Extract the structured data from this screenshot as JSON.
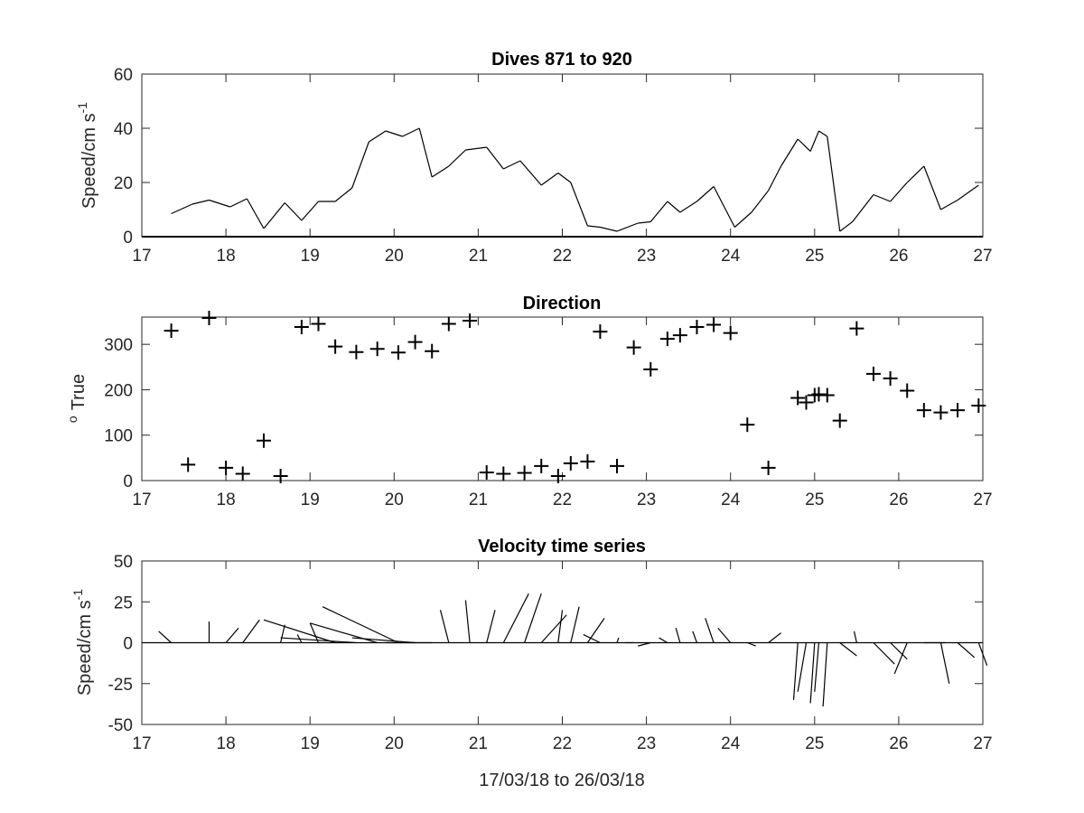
{
  "chart_data": [
    {
      "type": "line",
      "title": "Dives 871 to 920",
      "ylabel_main": "Speed/cm s",
      "ylabel_exp": "-1",
      "xlim": [
        17,
        27
      ],
      "ylim": [
        0,
        60
      ],
      "xticks": [
        17,
        18,
        19,
        20,
        21,
        22,
        23,
        24,
        25,
        26,
        27
      ],
      "yticks": [
        0,
        20,
        40,
        60
      ],
      "x": [
        17.35,
        17.6,
        17.8,
        18.05,
        18.25,
        18.45,
        18.7,
        18.9,
        19.1,
        19.3,
        19.5,
        19.7,
        19.9,
        20.1,
        20.3,
        20.45,
        20.65,
        20.85,
        21.1,
        21.3,
        21.5,
        21.75,
        21.95,
        22.1,
        22.3,
        22.45,
        22.65,
        22.9,
        23.05,
        23.25,
        23.4,
        23.6,
        23.8,
        24.05,
        24.25,
        24.45,
        24.6,
        24.8,
        24.95,
        25.05,
        25.1,
        25.15,
        25.3,
        25.45,
        25.7,
        25.9,
        26.1,
        26.3,
        26.5,
        26.7,
        26.95
      ],
      "values": [
        8.5,
        12,
        13.5,
        11,
        14,
        3,
        12.5,
        6,
        13,
        13,
        18,
        35,
        39,
        37,
        40,
        22,
        26,
        32,
        33,
        25,
        28,
        19,
        23.5,
        20,
        4,
        3.5,
        2,
        5,
        5.5,
        13,
        9,
        13,
        18.5,
        3.5,
        9,
        17,
        26,
        36,
        31.5,
        39,
        38,
        37,
        2,
        5.5,
        15.5,
        13,
        20,
        26,
        10,
        13.5,
        19
      ]
    },
    {
      "type": "scatter",
      "title": "Direction",
      "ylabel_sup": "o",
      "ylabel_main": "True",
      "xlim": [
        17,
        27
      ],
      "ylim": [
        0,
        360
      ],
      "xticks": [
        17,
        18,
        19,
        20,
        21,
        22,
        23,
        24,
        25,
        26,
        27
      ],
      "yticks": [
        0,
        100,
        200,
        300
      ],
      "x": [
        17.35,
        17.55,
        17.8,
        18.0,
        18.2,
        18.45,
        18.65,
        18.9,
        19.1,
        19.3,
        19.55,
        19.8,
        20.05,
        20.25,
        20.45,
        20.65,
        20.9,
        21.1,
        21.3,
        21.55,
        21.75,
        21.95,
        22.1,
        22.3,
        22.45,
        22.65,
        22.85,
        23.05,
        23.25,
        23.4,
        23.6,
        23.8,
        24.0,
        24.2,
        24.45,
        24.8,
        24.9,
        25.0,
        25.05,
        25.15,
        25.3,
        25.5,
        25.7,
        25.9,
        26.1,
        26.3,
        26.5,
        26.7,
        26.95
      ],
      "values": [
        330,
        35,
        358,
        28,
        15,
        88,
        10,
        338,
        345,
        295,
        283,
        290,
        282,
        305,
        285,
        345,
        352,
        18,
        15,
        17,
        32,
        10,
        38,
        42,
        328,
        32,
        293,
        245,
        312,
        320,
        338,
        343,
        325,
        123,
        28,
        182,
        172,
        188,
        190,
        188,
        132,
        335,
        235,
        225,
        198,
        155,
        150,
        155,
        165
      ]
    },
    {
      "type": "vector",
      "title": "Velocity time series",
      "ylabel_main": "Speed/cm s",
      "ylabel_exp": "-1",
      "xlabel": "17/03/18 to 26/03/18",
      "xlim": [
        17,
        27
      ],
      "ylim": [
        -50,
        50
      ],
      "xticks": [
        17,
        18,
        19,
        20,
        21,
        22,
        23,
        24,
        25,
        26,
        27
      ],
      "yticks": [
        -50,
        -25,
        0,
        25,
        50
      ],
      "yticklabels": [
        "-50",
        "-25",
        "0",
        "25",
        "50"
      ],
      "x": [
        17.35,
        17.55,
        17.8,
        18.0,
        18.2,
        18.45,
        18.65,
        18.9,
        19.1,
        19.3,
        19.55,
        19.8,
        20.05,
        20.25,
        20.45,
        20.65,
        20.9,
        21.1,
        21.3,
        21.55,
        21.75,
        21.95,
        22.1,
        22.3,
        22.45,
        22.65,
        22.85,
        23.05,
        23.25,
        23.4,
        23.6,
        23.8,
        24.0,
        24.2,
        24.45,
        24.8,
        24.9,
        25.0,
        25.05,
        25.15,
        25.3,
        25.5,
        25.7,
        25.9,
        26.1,
        26.3,
        26.5,
        26.7,
        26.95
      ],
      "dx_days": [
        -0.15,
        0,
        0,
        0.15,
        0.2,
        0,
        0.05,
        -0.05,
        -0.1,
        -0.85,
        -0.9,
        -0.8,
        -0.9,
        -0.75,
        -0.55,
        -0.1,
        -0.05,
        0.1,
        0.3,
        0.2,
        0.3,
        0.05,
        0.1,
        0.2,
        -0.2,
        0.02,
        -0.1,
        -0.15,
        -0.1,
        -0.05,
        -0.05,
        -0.1,
        -0.15,
        0.1,
        0.15,
        -0.05,
        -0.1,
        -0.05,
        -0.05,
        -0.05,
        0.2,
        -0.03,
        0.25,
        0.2,
        -0.15,
        0.25,
        0.1,
        0.2,
        0.1
      ],
      "dy": [
        7,
        0,
        13,
        9,
        14,
        0,
        11,
        5,
        12,
        14,
        3,
        12,
        22,
        3,
        0,
        20,
        26,
        20,
        30,
        30,
        17,
        20,
        22,
        15,
        5,
        3,
        0,
        -2,
        3,
        9,
        7,
        15,
        9,
        -2,
        6,
        -35,
        -30,
        -37,
        -30,
        -39,
        -8,
        7,
        -13,
        -10,
        -19,
        0,
        -25,
        -9,
        -14
      ]
    }
  ]
}
